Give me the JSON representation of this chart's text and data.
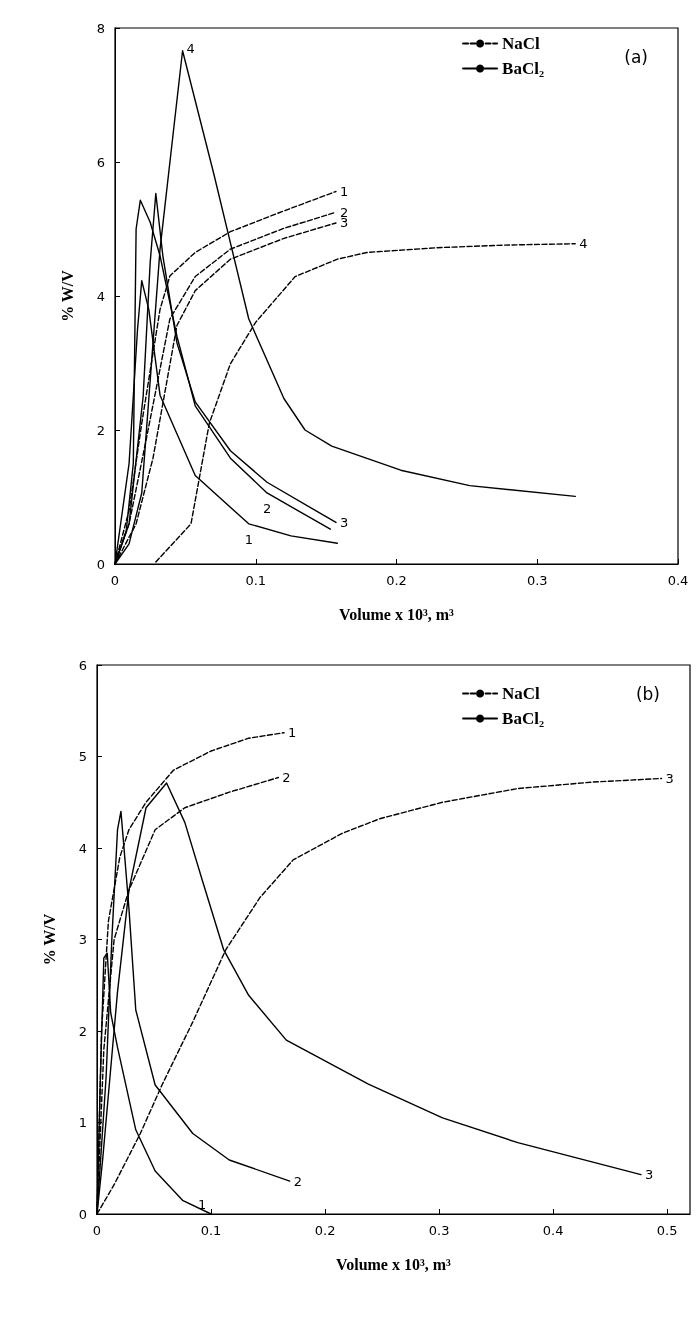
{
  "chart_data": [
    {
      "type": "line",
      "xlabel": "Volume x 10³, m³",
      "ylabel": "% W/V",
      "legend": "top right",
      "marker": "none",
      "xlim": [
        0,
        0.4
      ],
      "ylim": [
        0,
        8
      ],
      "xticks": [
        0,
        0.1,
        0.2,
        0.3,
        0.4
      ],
      "yticks": [
        0,
        2,
        4,
        6,
        8
      ],
      "series": [
        {
          "name": "NaCl",
          "color": "#000000",
          "line_style": "dashed",
          "x": [
            0,
            0.01,
            0.019,
            0.032,
            0.039,
            0.057,
            0.082,
            0.12,
            0.157
          ],
          "values": [
            0,
            0.8,
            2.1,
            3.8,
            4.3,
            4.65,
            4.96,
            5.27,
            5.56
          ]
        },
        {
          "color": "#000000",
          "line_style": "dashed",
          "x": [
            0,
            0.01,
            0.022,
            0.039,
            0.057,
            0.082,
            0.12,
            0.157
          ],
          "values": [
            0,
            0.6,
            1.84,
            3.66,
            4.29,
            4.7,
            5.01,
            5.25
          ]
        },
        {
          "color": "#000000",
          "line_style": "dashed",
          "x": [
            0,
            0.015,
            0.027,
            0.044,
            0.057,
            0.082,
            0.12,
            0.157
          ],
          "values": [
            0,
            0.6,
            1.58,
            3.56,
            4.08,
            4.55,
            4.86,
            5.09
          ]
        },
        {
          "color": "#000000",
          "line_style": "dashed",
          "x": [
            0.029,
            0.054,
            0.067,
            0.082,
            0.1,
            0.128,
            0.158,
            0.179,
            0.228,
            0.277,
            0.327
          ],
          "values": [
            0.03,
            0.6,
            2.1,
            2.99,
            3.61,
            4.29,
            4.55,
            4.65,
            4.72,
            4.76,
            4.78
          ]
        },
        {
          "name": "BaCl₂",
          "color": "#000000",
          "line_style": "solid",
          "x": [
            0,
            0.01,
            0.016,
            0.019,
            0.024,
            0.032,
            0.057,
            0.095,
            0.125,
            0.158
          ],
          "values": [
            0,
            1.5,
            3.5,
            4.23,
            3.8,
            2.52,
            1.32,
            0.6,
            0.42,
            0.31
          ]
        },
        {
          "color": "#000000",
          "line_style": "solid",
          "x": [
            0,
            0.008,
            0.013,
            0.015,
            0.018,
            0.025,
            0.032,
            0.044,
            0.057,
            0.082,
            0.108,
            0.153
          ],
          "values": [
            0,
            0.5,
            1.5,
            5.0,
            5.43,
            5.1,
            4.6,
            3.4,
            2.36,
            1.58,
            1.06,
            0.52
          ]
        },
        {
          "color": "#000000",
          "line_style": "solid",
          "x": [
            0,
            0.01,
            0.02,
            0.025,
            0.029,
            0.034,
            0.044,
            0.057,
            0.082,
            0.108,
            0.157
          ],
          "values": [
            0,
            0.6,
            2.5,
            4.5,
            5.53,
            4.6,
            3.3,
            2.42,
            1.69,
            1.22,
            0.62
          ]
        },
        {
          "color": "#000000",
          "line_style": "solid",
          "x": [
            0,
            0.01,
            0.019,
            0.032,
            0.048,
            0.07,
            0.095,
            0.12,
            0.135,
            0.154,
            0.203,
            0.252,
            0.327
          ],
          "values": [
            0,
            0.3,
            1.06,
            4.7,
            7.66,
            5.84,
            3.66,
            2.47,
            2.0,
            1.76,
            1.4,
            1.17,
            1.01
          ]
        }
      ],
      "annotations": [
        "(a)",
        {
          "text": "1",
          "x": 0.157,
          "y": 5.56
        },
        {
          "text": "2",
          "x": 0.157,
          "y": 5.25
        },
        {
          "text": "3",
          "x": 0.157,
          "y": 5.09
        },
        {
          "text": "4",
          "x": 0.327,
          "y": 4.78
        },
        {
          "text": "4",
          "x": 0.048,
          "y": 7.66
        },
        {
          "text": "3",
          "x": 0.157,
          "y": 0.62
        },
        {
          "text": "2",
          "x": 0.108,
          "y": 1.06
        },
        {
          "text": "1",
          "x": 0.095,
          "y": 0.6
        }
      ]
    },
    {
      "type": "line",
      "xlabel": "Volume x 10³, m³",
      "ylabel": "% W/V",
      "legend": "top right",
      "marker": "none",
      "xlim": [
        0,
        0.52
      ],
      "ylim": [
        0,
        6
      ],
      "xticks": [
        0,
        0.1,
        0.2,
        0.3,
        0.4,
        0.5
      ],
      "yticks": [
        0,
        1,
        2,
        3,
        4,
        5,
        6
      ],
      "series": [
        {
          "name": "NaCl",
          "color": "#000000",
          "line_style": "dashed",
          "x": [
            0,
            0.004,
            0.01,
            0.02,
            0.028,
            0.043,
            0.067,
            0.1,
            0.133,
            0.164
          ],
          "values": [
            0,
            2.0,
            3.2,
            3.9,
            4.2,
            4.5,
            4.85,
            5.06,
            5.2,
            5.26
          ]
        },
        {
          "color": "#000000",
          "line_style": "dashed",
          "x": [
            0,
            0.006,
            0.015,
            0.028,
            0.051,
            0.077,
            0.116,
            0.159
          ],
          "values": [
            0,
            1.8,
            3.0,
            3.54,
            4.2,
            4.44,
            4.61,
            4.77
          ]
        },
        {
          "color": "#000000",
          "line_style": "dashed",
          "x": [
            0,
            0.015,
            0.038,
            0.057,
            0.084,
            0.113,
            0.143,
            0.172,
            0.215,
            0.248,
            0.303,
            0.369,
            0.434,
            0.495
          ],
          "values": [
            0,
            0.32,
            0.88,
            1.41,
            2.1,
            2.89,
            3.46,
            3.87,
            4.16,
            4.32,
            4.5,
            4.65,
            4.72,
            4.76
          ]
        },
        {
          "name": "BaCl₂",
          "color": "#000000",
          "line_style": "solid",
          "x": [
            0,
            0.003,
            0.006,
            0.009,
            0.012,
            0.018,
            0.034,
            0.051,
            0.075,
            0.1
          ],
          "values": [
            0,
            1.5,
            2.8,
            2.85,
            2.2,
            1.82,
            0.92,
            0.47,
            0.15,
            0
          ]
        },
        {
          "color": "#000000",
          "line_style": "solid",
          "x": [
            0,
            0.008,
            0.013,
            0.018,
            0.021,
            0.025,
            0.028,
            0.034,
            0.051,
            0.084,
            0.116,
            0.169
          ],
          "values": [
            0,
            1.5,
            3.0,
            4.2,
            4.4,
            3.8,
            3.34,
            2.23,
            1.41,
            0.88,
            0.59,
            0.36
          ]
        },
        {
          "color": "#000000",
          "line_style": "solid",
          "x": [
            0,
            0.005,
            0.018,
            0.028,
            0.043,
            0.061,
            0.077,
            0.093,
            0.111,
            0.133,
            0.166,
            0.238,
            0.303,
            0.369,
            0.434,
            0.477
          ],
          "values": [
            0,
            0.6,
            2.43,
            3.54,
            4.44,
            4.71,
            4.28,
            3.62,
            2.89,
            2.39,
            1.9,
            1.42,
            1.05,
            0.78,
            0.57,
            0.43
          ]
        }
      ],
      "annotations": [
        "(b)",
        {
          "text": "1",
          "x": 0.164,
          "y": 5.26
        },
        {
          "text": "2",
          "x": 0.159,
          "y": 4.77
        },
        {
          "text": "3",
          "x": 0.495,
          "y": 4.76
        },
        {
          "text": "3",
          "x": 0.477,
          "y": 0.43
        },
        {
          "text": "2",
          "x": 0.169,
          "y": 0.36
        },
        {
          "text": "1",
          "x": 0.085,
          "y": 0.1
        }
      ]
    }
  ]
}
